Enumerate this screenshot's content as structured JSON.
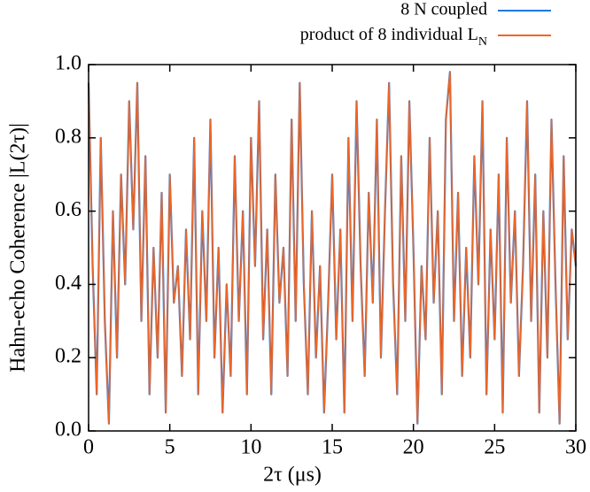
{
  "chart_data": {
    "type": "line",
    "xlabel": "2τ (μs)",
    "ylabel": "Hahn-echo Coherence |L(2τ)|",
    "x": [
      0,
      0.25,
      0.5,
      0.75,
      1,
      1.25,
      1.5,
      1.75,
      2,
      2.25,
      2.5,
      2.75,
      3,
      3.25,
      3.5,
      3.75,
      4,
      4.25,
      4.5,
      4.75,
      5,
      5.25,
      5.5,
      5.75,
      6,
      6.25,
      6.5,
      6.75,
      7,
      7.25,
      7.5,
      7.75,
      8,
      8.25,
      8.5,
      8.75,
      9,
      9.25,
      9.5,
      9.75,
      10,
      10.25,
      10.5,
      10.75,
      11,
      11.25,
      11.5,
      11.75,
      12,
      12.25,
      12.5,
      12.75,
      13,
      13.25,
      13.5,
      13.75,
      14,
      14.25,
      14.5,
      14.75,
      15,
      15.25,
      15.5,
      15.75,
      16,
      16.25,
      16.5,
      16.75,
      17,
      17.25,
      17.5,
      17.75,
      18,
      18.25,
      18.5,
      18.75,
      19,
      19.25,
      19.5,
      19.75,
      20,
      20.25,
      20.5,
      20.75,
      21,
      21.25,
      21.5,
      21.75,
      22,
      22.25,
      22.5,
      22.75,
      23,
      23.25,
      23.5,
      23.75,
      24,
      24.25,
      24.5,
      24.75,
      25,
      25.25,
      25.5,
      25.75,
      26,
      26.25,
      26.5,
      26.75,
      27,
      27.25,
      27.5,
      27.75,
      28,
      28.25,
      28.5,
      28.75,
      29,
      29.25,
      29.5,
      29.75,
      30
    ],
    "series": [
      {
        "name": "8 N coupled",
        "color": "#1f77e0",
        "values": [
          0.95,
          0.45,
          0.1,
          0.8,
          0.3,
          0.02,
          0.6,
          0.2,
          0.7,
          0.4,
          0.9,
          0.55,
          0.95,
          0.3,
          0.75,
          0.1,
          0.5,
          0.2,
          0.65,
          0.05,
          0.7,
          0.35,
          0.45,
          0.15,
          0.55,
          0.25,
          0.8,
          0.1,
          0.6,
          0.3,
          0.85,
          0.2,
          0.5,
          0.05,
          0.4,
          0.15,
          0.75,
          0.3,
          0.6,
          0.1,
          0.8,
          0.45,
          0.9,
          0.25,
          0.55,
          0.1,
          0.7,
          0.35,
          0.5,
          0.15,
          0.85,
          0.3,
          0.95,
          0.4,
          0.1,
          0.6,
          0.2,
          0.45,
          0.05,
          0.35,
          0.7,
          0.25,
          0.55,
          0.05,
          0.8,
          0.3,
          0.9,
          0.45,
          0.15,
          0.65,
          0.35,
          0.85,
          0.2,
          0.6,
          0.95,
          0.4,
          0.1,
          0.75,
          0.3,
          0.9,
          0.5,
          0.02,
          0.45,
          0.25,
          0.8,
          0.35,
          0.6,
          0.1,
          0.85,
          0.98,
          0.3,
          0.65,
          0.15,
          0.5,
          0.2,
          0.75,
          0.4,
          0.9,
          0.1,
          0.55,
          0.25,
          0.7,
          0.05,
          0.8,
          0.35,
          0.6,
          0.15,
          0.45,
          0.9,
          0.3,
          0.7,
          0.05,
          0.6,
          0.2,
          0.85,
          0.4,
          0.02,
          0.75,
          0.25,
          0.55,
          0.45
        ]
      },
      {
        "name": "product of 8 individual L_N",
        "color": "#f26522",
        "values": [
          0.95,
          0.45,
          0.1,
          0.8,
          0.3,
          0.02,
          0.6,
          0.2,
          0.7,
          0.4,
          0.9,
          0.55,
          0.95,
          0.3,
          0.75,
          0.1,
          0.5,
          0.2,
          0.65,
          0.05,
          0.7,
          0.35,
          0.45,
          0.15,
          0.55,
          0.25,
          0.8,
          0.1,
          0.6,
          0.3,
          0.85,
          0.2,
          0.5,
          0.05,
          0.4,
          0.15,
          0.75,
          0.3,
          0.6,
          0.1,
          0.8,
          0.45,
          0.9,
          0.25,
          0.55,
          0.1,
          0.7,
          0.35,
          0.5,
          0.15,
          0.85,
          0.3,
          0.95,
          0.4,
          0.1,
          0.6,
          0.2,
          0.45,
          0.05,
          0.35,
          0.7,
          0.25,
          0.55,
          0.05,
          0.8,
          0.3,
          0.9,
          0.45,
          0.15,
          0.65,
          0.35,
          0.85,
          0.2,
          0.6,
          0.95,
          0.4,
          0.1,
          0.75,
          0.3,
          0.9,
          0.5,
          0.02,
          0.45,
          0.25,
          0.8,
          0.35,
          0.6,
          0.1,
          0.85,
          0.98,
          0.3,
          0.65,
          0.15,
          0.5,
          0.2,
          0.75,
          0.4,
          0.9,
          0.1,
          0.55,
          0.25,
          0.7,
          0.05,
          0.8,
          0.35,
          0.6,
          0.15,
          0.45,
          0.9,
          0.3,
          0.7,
          0.05,
          0.6,
          0.2,
          0.85,
          0.4,
          0.02,
          0.75,
          0.25,
          0.55,
          0.45
        ]
      }
    ],
    "xlim": [
      0,
      30
    ],
    "xticks": [
      0,
      5,
      10,
      15,
      20,
      25,
      30
    ],
    "ylim": [
      0,
      1
    ],
    "yticks": [
      {
        "value": 0,
        "label": "0.0"
      },
      0.2,
      0.4,
      0.6,
      0.8,
      {
        "value": 1,
        "label": "1.0"
      }
    ],
    "legend": "top-right"
  }
}
